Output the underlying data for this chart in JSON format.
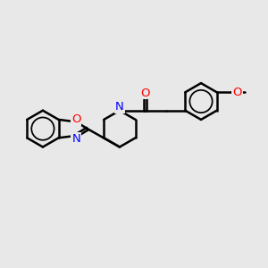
{
  "background_color": "#e8e8e8",
  "line_color": "#000000",
  "N_color": "#0000ff",
  "O_color": "#ff0000",
  "bond_width": 1.8,
  "figsize": [
    3.0,
    3.0
  ],
  "dpi": 100,
  "xlim": [
    -3.0,
    4.5
  ],
  "ylim": [
    -2.2,
    2.0
  ]
}
